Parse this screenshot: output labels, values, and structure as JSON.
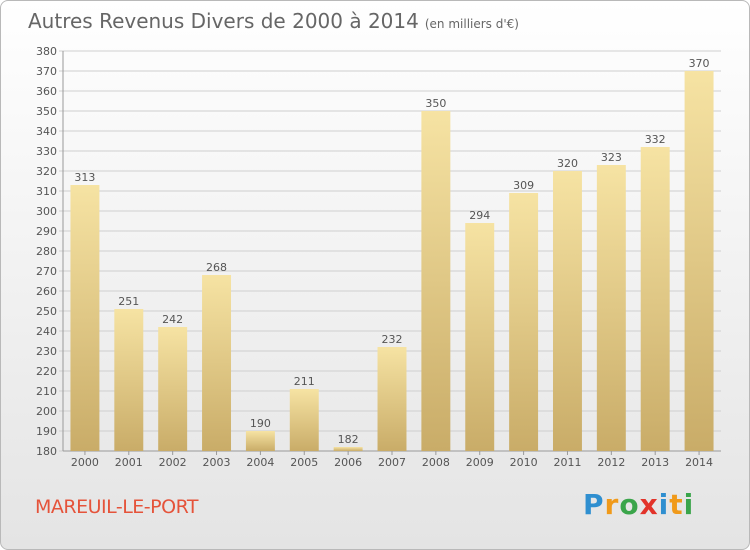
{
  "header": {
    "title": "Autres Revenus Divers de 2000 à 2014",
    "subtitle": "(en milliers d'€)"
  },
  "footer": {
    "town": "MAREUIL-LE-PORT",
    "brand": "Proxiti"
  },
  "colors": {
    "bar_top": "#f6e3a3",
    "bar_bottom": "#c9ac68",
    "grid": "#cfcfcf",
    "text": "#555555",
    "town": "#e5533a"
  },
  "chart_data": {
    "type": "bar",
    "title": "Autres Revenus Divers de 2000 à 2014",
    "subtitle": "(en milliers d'€)",
    "categories": [
      "2000",
      "2001",
      "2002",
      "2003",
      "2004",
      "2005",
      "2006",
      "2007",
      "2008",
      "2009",
      "2010",
      "2011",
      "2012",
      "2013",
      "2014"
    ],
    "values": [
      313,
      251,
      242,
      268,
      190,
      211,
      182,
      232,
      350,
      294,
      309,
      320,
      323,
      332,
      370
    ],
    "ylim": [
      180,
      380
    ],
    "ytick_step": 10,
    "grid": true,
    "data_labels": true
  }
}
